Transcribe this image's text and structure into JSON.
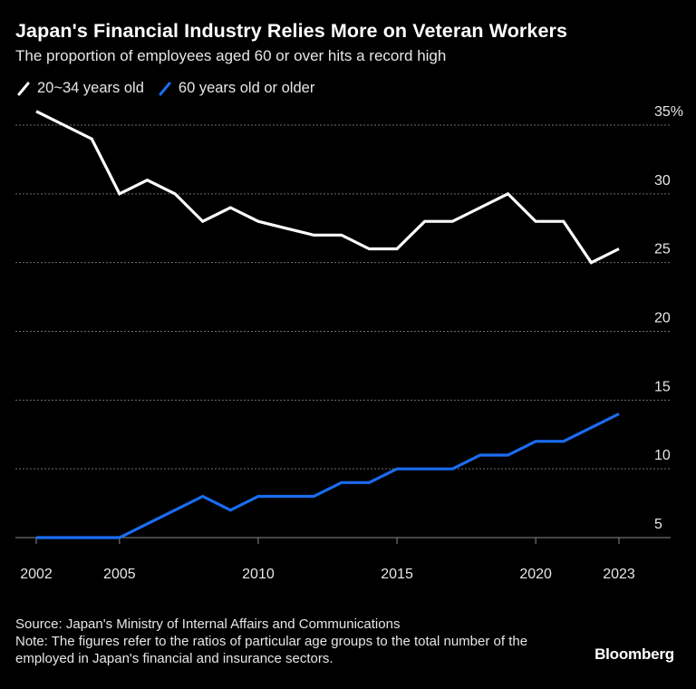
{
  "title": "Japan's Financial Industry Relies More on Veteran Workers",
  "subtitle": "The proportion of employees aged 60 or over hits a record high",
  "source": "Source: Japan's Ministry of Internal Affairs and Communications",
  "note": "Note: The figures refer to the ratios of particular age groups to the total number of the employed in Japan's financial and insurance sectors.",
  "logo": "Bloomberg",
  "colors": {
    "background": "#000000",
    "young": "#ffffff",
    "old": "#1a6cf0",
    "grid": "#6e6e6e"
  },
  "chart_data": {
    "type": "line",
    "x": [
      2002,
      2003,
      2004,
      2005,
      2006,
      2007,
      2008,
      2009,
      2010,
      2011,
      2012,
      2013,
      2014,
      2015,
      2016,
      2017,
      2018,
      2019,
      2020,
      2021,
      2022,
      2023
    ],
    "series": [
      {
        "name": "20~34 years old",
        "color": "#ffffff",
        "values": [
          36,
          35,
          34,
          30,
          31,
          30,
          28,
          29,
          28,
          27.5,
          27,
          27,
          26,
          26,
          28,
          28,
          29,
          30,
          28,
          28,
          25,
          26
        ]
      },
      {
        "name": "60 years old or older",
        "color": "#1a6cf0",
        "values": [
          5,
          5,
          5,
          5,
          6,
          7,
          8,
          7,
          8,
          8,
          8,
          9,
          9,
          10,
          10,
          10,
          11,
          11,
          12,
          12,
          13,
          14
        ]
      }
    ],
    "ylim": [
      5,
      35
    ],
    "yticks": [
      5,
      10,
      15,
      20,
      25,
      30,
      35
    ],
    "ytick_labels": [
      "5",
      "10",
      "15",
      "20",
      "25",
      "30",
      "35%"
    ],
    "xticks": [
      2002,
      2005,
      2010,
      2015,
      2020,
      2023
    ],
    "xtick_labels": [
      "2002",
      "2005",
      "2010",
      "2015",
      "2020",
      "2023"
    ],
    "xlabel": "",
    "ylabel": "",
    "grid": true,
    "legend": "top-left"
  }
}
